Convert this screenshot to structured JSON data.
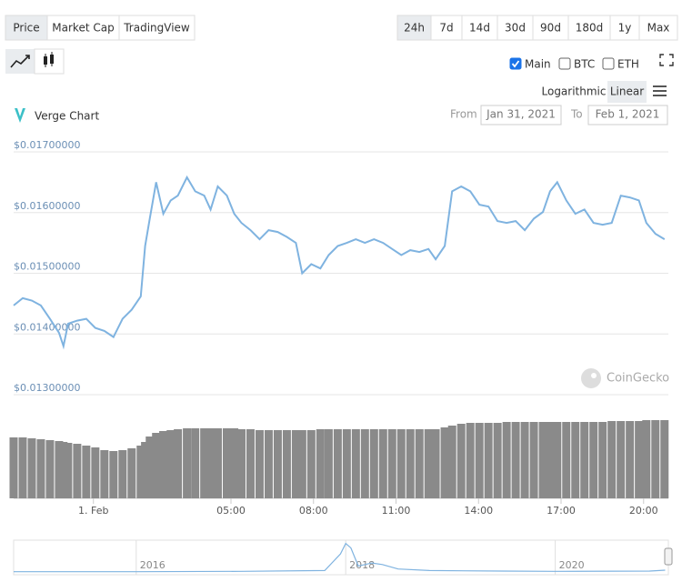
{
  "tabs": {
    "items": [
      "Price",
      "Market Cap",
      "TradingView"
    ],
    "active": 0
  },
  "ranges": {
    "items": [
      "24h",
      "7d",
      "14d",
      "30d",
      "90d",
      "180d",
      "1y",
      "Max"
    ],
    "active": 0
  },
  "checkboxes": [
    {
      "label": "Main",
      "checked": true
    },
    {
      "label": "BTC",
      "checked": false
    },
    {
      "label": "ETH",
      "checked": false
    }
  ],
  "scale": {
    "options": [
      "Logarithmic",
      "Linear"
    ],
    "active": 1
  },
  "chart_title": "Verge Chart",
  "date_range": {
    "from_label": "From",
    "from": "Jan 31, 2021",
    "to_label": "To",
    "to": "Feb 1, 2021"
  },
  "watermark": "CoinGecko",
  "chart_data": [
    {
      "type": "line",
      "x": [
        -2.9,
        -2.57,
        -2.24,
        -1.91,
        -1.58,
        -1.25,
        -1.09,
        -0.92,
        -0.59,
        -0.26,
        0.07,
        0.4,
        0.73,
        1.06,
        1.39,
        1.72,
        1.88,
        2.05,
        2.28,
        2.54,
        2.81,
        3.07,
        3.4,
        3.7,
        4.03,
        4.26,
        4.52,
        4.85,
        5.12,
        5.38,
        5.71,
        6.04,
        6.37,
        6.7,
        7.03,
        7.36,
        7.59,
        7.92,
        8.25,
        8.55,
        8.88,
        9.21,
        9.54,
        9.87,
        10.2,
        10.53,
        10.86,
        11.19,
        11.52,
        11.85,
        12.18,
        12.44,
        12.77,
        13.04,
        13.37,
        13.7,
        14.03,
        14.36,
        14.69,
        15.02,
        15.35,
        15.68,
        16.01,
        16.34,
        16.6,
        16.86,
        17.19,
        17.52,
        17.85,
        18.18,
        18.51,
        18.84,
        19.17,
        19.5,
        19.83,
        20.1,
        20.43,
        20.76
      ],
      "series": [
        {
          "color": "#7fb3e0",
          "values": [
            0.01447,
            0.01459,
            0.01455,
            0.01447,
            0.01425,
            0.01402,
            0.0138,
            0.01417,
            0.01422,
            0.01425,
            0.0141,
            0.01405,
            0.01395,
            0.01425,
            0.0144,
            0.01462,
            0.01545,
            0.0159,
            0.0165,
            0.01598,
            0.0162,
            0.01628,
            0.01658,
            0.01635,
            0.01628,
            0.01605,
            0.01643,
            0.01628,
            0.01598,
            0.01583,
            0.01571,
            0.01556,
            0.01571,
            0.01568,
            0.0156,
            0.0155,
            0.015,
            0.01515,
            0.01508,
            0.0153,
            0.01545,
            0.0155,
            0.01556,
            0.0155,
            0.01556,
            0.0155,
            0.0154,
            0.0153,
            0.01538,
            0.01535,
            0.0154,
            0.01523,
            0.01545,
            0.01635,
            0.01643,
            0.01635,
            0.01613,
            0.0161,
            0.01586,
            0.01583,
            0.01586,
            0.01571,
            0.0159,
            0.01601,
            0.01635,
            0.0165,
            0.0162,
            0.01598,
            0.01605,
            0.01583,
            0.0158,
            0.01583,
            0.01628,
            0.01625,
            0.0162,
            0.01583,
            0.01565,
            0.01556
          ]
        },
        {
          "type": "bar",
          "axis": "y2",
          "color": "#8a8a8a",
          "values": [
            67,
            67,
            66,
            65,
            64,
            63,
            62,
            61,
            60,
            58,
            56,
            53,
            52,
            53,
            55,
            58,
            62,
            68,
            72,
            74,
            75,
            76,
            77,
            77,
            77,
            77,
            77,
            77,
            77,
            76,
            76,
            75,
            75,
            75,
            75,
            75,
            75,
            75,
            76,
            76,
            76,
            76,
            76,
            76,
            76,
            76,
            76,
            76,
            76,
            76,
            76,
            76,
            78,
            80,
            82,
            83,
            83,
            83,
            83,
            84,
            84,
            84,
            84,
            84,
            84,
            84,
            84,
            84,
            84,
            84,
            84,
            85,
            85,
            85,
            85,
            86,
            86,
            86
          ]
        }
      ],
      "xlim": [
        -2.9,
        20.9
      ],
      "xticks": [
        {
          "value": 0,
          "label": "1. Feb"
        },
        {
          "value": 5,
          "label": "05:00"
        },
        {
          "value": 8,
          "label": "08:00"
        },
        {
          "value": 11,
          "label": "11:00"
        },
        {
          "value": 14,
          "label": "14:00"
        },
        {
          "value": 17,
          "label": "17:00"
        },
        {
          "value": 20,
          "label": "20:00"
        }
      ],
      "ylim": [
        0.013,
        0.017
      ],
      "yticks": [
        {
          "value": 0.013,
          "label": "$0.01300000"
        },
        {
          "value": 0.014,
          "label": "$0.01400000"
        },
        {
          "value": 0.015,
          "label": "$0.01500000"
        },
        {
          "value": 0.016,
          "label": "$0.01600000"
        },
        {
          "value": 0.017,
          "label": "$0.01700000"
        }
      ],
      "y2lim": [
        0,
        100
      ],
      "grid": true
    },
    {
      "type": "line",
      "x": [
        2014.83,
        2016,
        2017,
        2017.8,
        2017.95,
        2018,
        2018.05,
        2018.12,
        2018.25,
        2018.35,
        2018.5,
        2018.8,
        2019.5,
        2020,
        2020.9,
        2021.05
      ],
      "values": [
        1,
        1,
        2,
        5,
        60,
        95,
        80,
        20,
        30,
        25,
        10,
        5,
        3,
        2,
        3,
        6
      ],
      "color": "#7fb3e0",
      "xlim": [
        2014.83,
        2021.08
      ],
      "ylim": [
        0,
        100
      ],
      "xticks": [
        2016,
        2018,
        2020
      ]
    }
  ]
}
